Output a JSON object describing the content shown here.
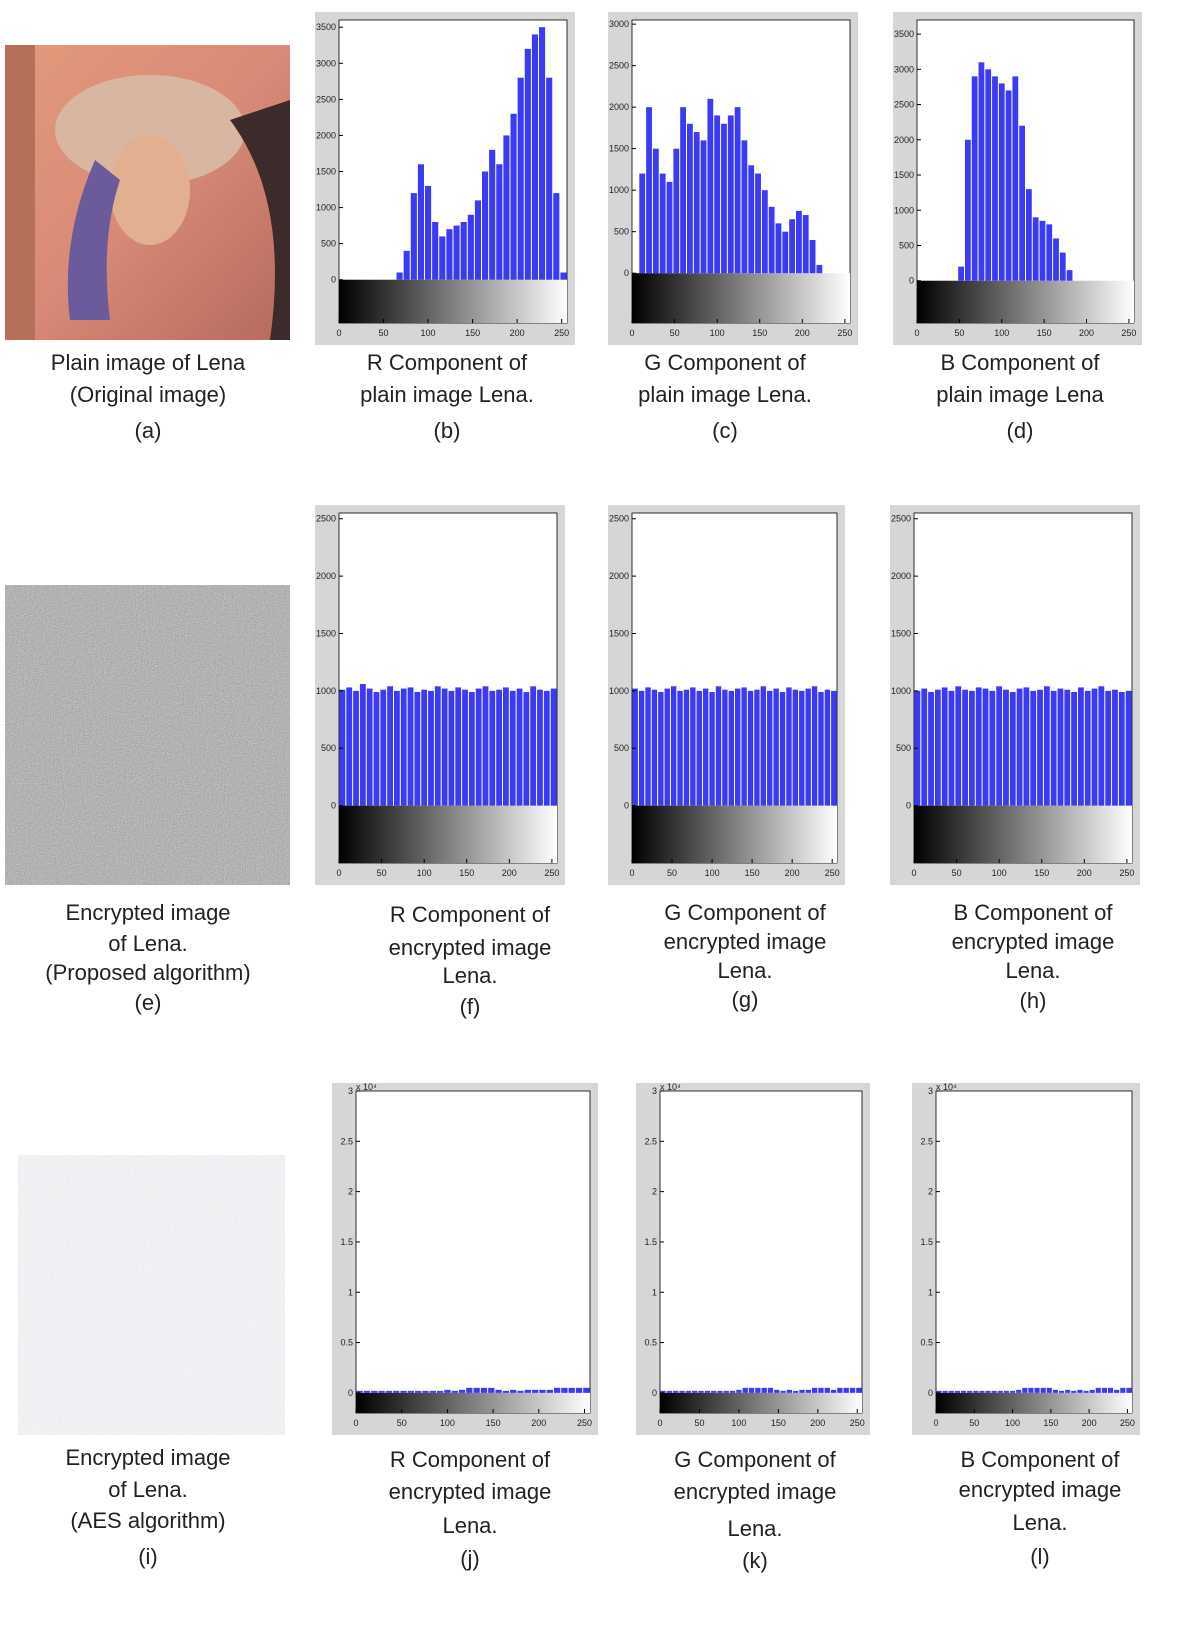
{
  "images": [
    {
      "caption": [
        "Plain image of Lena",
        "(Original image)"
      ],
      "label": "(a)"
    },
    {
      "caption": [
        "Encrypted image",
        "of Lena.",
        "(Proposed algorithm)"
      ],
      "label": "(e)"
    },
    {
      "caption": [
        "Encrypted image",
        "of Lena.",
        "(AES algorithm)"
      ],
      "label": "(i)"
    }
  ],
  "chart_data": [
    {
      "type": "histogram",
      "caption": [
        "R Component of",
        "plain image Lena."
      ],
      "label": "(b)",
      "color": "#3b3bf5",
      "bins": [
        0,
        8,
        16,
        24,
        32,
        40,
        48,
        56,
        64,
        72,
        80,
        88,
        96,
        104,
        112,
        120,
        128,
        136,
        144,
        152,
        160,
        168,
        176,
        184,
        192,
        200,
        208,
        216,
        224,
        232,
        240,
        248,
        256
      ],
      "values": [
        0,
        0,
        0,
        0,
        0,
        0,
        0,
        0,
        100,
        400,
        1200,
        1600,
        1300,
        800,
        600,
        700,
        750,
        800,
        900,
        1100,
        1500,
        1800,
        1600,
        2000,
        2300,
        2800,
        3200,
        3400,
        3500,
        2800,
        1200,
        100
      ],
      "xlim": [
        0,
        256
      ],
      "xticks": [
        0,
        50,
        100,
        150,
        200,
        250
      ],
      "ylim": [
        -600,
        3600
      ],
      "yticks": [
        0,
        500,
        1000,
        1500,
        2000,
        2500,
        3000,
        3500
      ]
    },
    {
      "type": "histogram",
      "caption": [
        "G Component of",
        "plain image Lena."
      ],
      "label": "(c)",
      "color": "#3b3bf5",
      "bins": [
        0,
        8,
        16,
        24,
        32,
        40,
        48,
        56,
        64,
        72,
        80,
        88,
        96,
        104,
        112,
        120,
        128,
        136,
        144,
        152,
        160,
        168,
        176,
        184,
        192,
        200,
        208,
        216,
        224,
        232,
        240,
        248,
        256
      ],
      "values": [
        0,
        1200,
        2000,
        1500,
        1200,
        1100,
        1500,
        2000,
        1800,
        1700,
        1600,
        2100,
        1900,
        1800,
        1900,
        2000,
        1600,
        1300,
        1200,
        1000,
        800,
        600,
        500,
        650,
        750,
        700,
        400,
        100,
        0,
        0,
        0,
        0
      ],
      "xlim": [
        0,
        256
      ],
      "xticks": [
        0,
        50,
        100,
        150,
        200,
        250
      ],
      "ylim": [
        -600,
        3050
      ],
      "yticks": [
        0,
        500,
        1000,
        1500,
        2000,
        2500,
        3000
      ]
    },
    {
      "type": "histogram",
      "caption": [
        "B Component of",
        "plain image Lena"
      ],
      "label": "(d)",
      "color": "#3b3bf5",
      "bins": [
        0,
        8,
        16,
        24,
        32,
        40,
        48,
        56,
        64,
        72,
        80,
        88,
        96,
        104,
        112,
        120,
        128,
        136,
        144,
        152,
        160,
        168,
        176,
        184,
        192,
        200,
        208,
        216,
        224,
        232,
        240,
        248,
        256
      ],
      "values": [
        0,
        0,
        0,
        0,
        0,
        0,
        200,
        2000,
        2900,
        3100,
        3000,
        2900,
        2800,
        2700,
        2900,
        2200,
        1300,
        900,
        850,
        800,
        600,
        400,
        150,
        0,
        0,
        0,
        0,
        0,
        0,
        0,
        0,
        0
      ],
      "xlim": [
        0,
        256
      ],
      "xticks": [
        0,
        50,
        100,
        150,
        200,
        250
      ],
      "ylim": [
        -600,
        3700
      ],
      "yticks": [
        0,
        500,
        1000,
        1500,
        2000,
        2500,
        3000,
        3500
      ]
    },
    {
      "type": "histogram",
      "caption": [
        "R Component of",
        "encrypted image",
        "Lena."
      ],
      "label": "(f)",
      "color": "#3b3bf5",
      "bins": [
        0,
        8,
        16,
        24,
        32,
        40,
        48,
        56,
        64,
        72,
        80,
        88,
        96,
        104,
        112,
        120,
        128,
        136,
        144,
        152,
        160,
        168,
        176,
        184,
        192,
        200,
        208,
        216,
        224,
        232,
        240,
        248,
        256
      ],
      "values": [
        1010,
        1030,
        1000,
        1060,
        1020,
        990,
        1010,
        1040,
        1000,
        1020,
        1030,
        990,
        1010,
        1000,
        1040,
        1020,
        1000,
        1030,
        1010,
        990,
        1020,
        1040,
        1000,
        1010,
        1030,
        1000,
        1020,
        990,
        1040,
        1010,
        1000,
        1020
      ],
      "xlim": [
        0,
        256
      ],
      "xticks": [
        0,
        50,
        100,
        150,
        200,
        250
      ],
      "ylim": [
        -500,
        2550
      ],
      "yticks": [
        0,
        500,
        1000,
        1500,
        2000,
        2500
      ]
    },
    {
      "type": "histogram",
      "caption": [
        "G Component of",
        "encrypted image",
        "Lena."
      ],
      "label": "(g)",
      "color": "#3b3bf5",
      "bins": [
        0,
        8,
        16,
        24,
        32,
        40,
        48,
        56,
        64,
        72,
        80,
        88,
        96,
        104,
        112,
        120,
        128,
        136,
        144,
        152,
        160,
        168,
        176,
        184,
        192,
        200,
        208,
        216,
        224,
        232,
        240,
        248,
        256
      ],
      "values": [
        1020,
        1000,
        1030,
        1010,
        990,
        1020,
        1040,
        1000,
        1010,
        1030,
        1000,
        1020,
        990,
        1040,
        1010,
        1000,
        1020,
        1030,
        1000,
        1010,
        1040,
        1000,
        1020,
        990,
        1030,
        1010,
        1000,
        1020,
        1040,
        990,
        1010,
        1000
      ],
      "xlim": [
        0,
        256
      ],
      "xticks": [
        0,
        50,
        100,
        150,
        200,
        250
      ],
      "ylim": [
        -500,
        2550
      ],
      "yticks": [
        0,
        500,
        1000,
        1500,
        2000,
        2500
      ]
    },
    {
      "type": "histogram",
      "caption": [
        "B Component of",
        "encrypted image",
        "Lena."
      ],
      "label": "(h)",
      "color": "#3b3bf5",
      "bins": [
        0,
        8,
        16,
        24,
        32,
        40,
        48,
        56,
        64,
        72,
        80,
        88,
        96,
        104,
        112,
        120,
        128,
        136,
        144,
        152,
        160,
        168,
        176,
        184,
        192,
        200,
        208,
        216,
        224,
        232,
        240,
        248,
        256
      ],
      "values": [
        1000,
        1020,
        990,
        1010,
        1030,
        1000,
        1040,
        1010,
        1000,
        1030,
        1020,
        1000,
        1040,
        1010,
        990,
        1020,
        1030,
        1000,
        1010,
        1040,
        1000,
        1020,
        1010,
        990,
        1030,
        1000,
        1020,
        1040,
        1000,
        1010,
        990,
        1000
      ],
      "xlim": [
        0,
        256
      ],
      "xticks": [
        0,
        50,
        100,
        150,
        200,
        250
      ],
      "ylim": [
        -500,
        2550
      ],
      "yticks": [
        0,
        500,
        1000,
        1500,
        2000,
        2500
      ]
    },
    {
      "type": "histogram",
      "caption": [
        "R Component of",
        "encrypted image",
        "Lena."
      ],
      "label": "(j)",
      "color": "#3b3bf5",
      "y_multiplier": "x 10⁴",
      "bins": [
        0,
        8,
        16,
        24,
        32,
        40,
        48,
        56,
        64,
        72,
        80,
        88,
        96,
        104,
        112,
        120,
        128,
        136,
        144,
        152,
        160,
        168,
        176,
        184,
        192,
        200,
        208,
        216,
        224,
        232,
        240,
        248,
        256
      ],
      "values": [
        0.02,
        0.02,
        0.02,
        0.02,
        0.02,
        0.02,
        0.02,
        0.02,
        0.02,
        0.02,
        0.02,
        0.02,
        0.03,
        0.02,
        0.03,
        0.05,
        0.05,
        0.05,
        0.05,
        0.03,
        0.02,
        0.03,
        0.02,
        0.03,
        0.03,
        0.03,
        0.03,
        0.05,
        0.05,
        0.05,
        0.05,
        0.05
      ],
      "xlim": [
        0,
        256
      ],
      "xticks": [
        0,
        50,
        100,
        150,
        200,
        250
      ],
      "ylim": [
        -0.2,
        3
      ],
      "yticks": [
        0,
        0.5,
        1,
        1.5,
        2,
        2.5,
        3
      ]
    },
    {
      "type": "histogram",
      "caption": [
        "G Component of",
        "encrypted image",
        "Lena."
      ],
      "label": "(k)",
      "color": "#3b3bf5",
      "y_multiplier": "x 10⁴",
      "bins": [
        0,
        8,
        16,
        24,
        32,
        40,
        48,
        56,
        64,
        72,
        80,
        88,
        96,
        104,
        112,
        120,
        128,
        136,
        144,
        152,
        160,
        168,
        176,
        184,
        192,
        200,
        208,
        216,
        224,
        232,
        240,
        248,
        256
      ],
      "values": [
        0.02,
        0.02,
        0.02,
        0.02,
        0.02,
        0.02,
        0.02,
        0.02,
        0.02,
        0.02,
        0.02,
        0.02,
        0.03,
        0.05,
        0.05,
        0.05,
        0.05,
        0.05,
        0.03,
        0.02,
        0.03,
        0.02,
        0.03,
        0.03,
        0.05,
        0.05,
        0.05,
        0.03,
        0.05,
        0.05,
        0.05,
        0.05
      ],
      "xlim": [
        0,
        256
      ],
      "xticks": [
        0,
        50,
        100,
        150,
        200,
        250
      ],
      "ylim": [
        -0.2,
        3
      ],
      "yticks": [
        0,
        0.5,
        1,
        1.5,
        2,
        2.5,
        3
      ]
    },
    {
      "type": "histogram",
      "caption": [
        "B Component of",
        "encrypted image",
        "Lena."
      ],
      "label": "(l)",
      "color": "#3b3bf5",
      "y_multiplier": "x 10⁴",
      "bins": [
        0,
        8,
        16,
        24,
        32,
        40,
        48,
        56,
        64,
        72,
        80,
        88,
        96,
        104,
        112,
        120,
        128,
        136,
        144,
        152,
        160,
        168,
        176,
        184,
        192,
        200,
        208,
        216,
        224,
        232,
        240,
        248,
        256
      ],
      "values": [
        0.02,
        0.02,
        0.02,
        0.02,
        0.02,
        0.02,
        0.02,
        0.02,
        0.02,
        0.02,
        0.02,
        0.02,
        0.02,
        0.03,
        0.05,
        0.05,
        0.05,
        0.05,
        0.05,
        0.03,
        0.02,
        0.03,
        0.02,
        0.03,
        0.02,
        0.03,
        0.05,
        0.05,
        0.05,
        0.03,
        0.05,
        0.05
      ],
      "xlim": [
        0,
        256
      ],
      "xticks": [
        0,
        50,
        100,
        150,
        200,
        250
      ],
      "ylim": [
        -0.2,
        3
      ],
      "yticks": [
        0,
        0.5,
        1,
        1.5,
        2,
        2.5,
        3
      ]
    }
  ]
}
